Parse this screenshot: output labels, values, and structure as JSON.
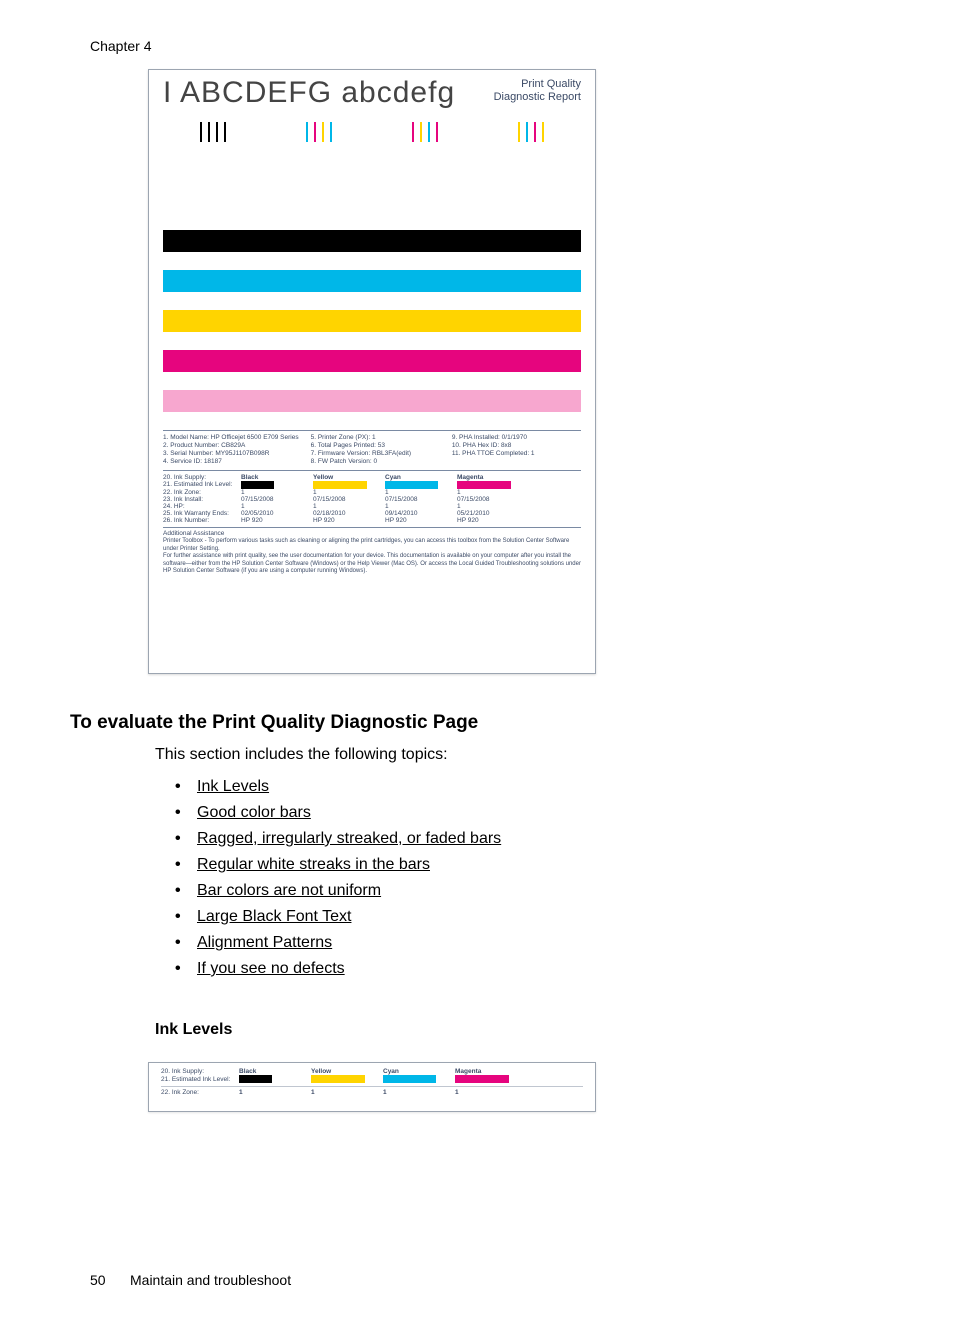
{
  "chapter_label": "Chapter 4",
  "diag": {
    "big_text": "I ABCDEFG abcdefg",
    "subtitle_line1": "Print Quality",
    "subtitle_line2": "Diagnostic Report",
    "colors": {
      "black": "#000000",
      "cyan": "#00b7e8",
      "magenta": "#e6057e",
      "yellow": "#ffd400",
      "ltpink": "#f7a7cf",
      "headtext": "#3b4a66"
    },
    "nozzle_strip_color_indices": [
      0,
      0,
      0,
      2,
      2,
      2,
      1,
      1,
      1,
      3,
      3,
      3
    ],
    "solid_bar_order": [
      "black",
      "cyan",
      "yellow",
      "magenta",
      "ltpink"
    ],
    "info_left": [
      "1. Model Name: HP Officejet 6500 E709 Series",
      "2. Product Number: CB829A",
      "3. Serial Number: MY95J1107B098R",
      "4. Service ID: 18187"
    ],
    "info_mid": [
      "5. Printer Zone (PX): 1",
      "6. Total Pages Printed: 53",
      "7. Firmware Version: RBL3FA(edit)",
      "8. FW Patch Version: 0"
    ],
    "info_right": [
      "9. PHA Installed: 0/1/1970",
      "10. PHA Hex ID: 8x8",
      "11. PHA TTOE Completed: 1"
    ],
    "ink_supply_label": "20. Ink Supply:",
    "est_level_label": "21. Estimated Ink Level:",
    "ink_cols": [
      "Black",
      "Yellow",
      "Cyan",
      "Magenta"
    ],
    "ink_bar_colors": [
      "#000000",
      "#ffd400",
      "#00b7e8",
      "#e6057e"
    ],
    "ink_bar_widths_pct": [
      55,
      90,
      88,
      90
    ],
    "zone_label": "22. Ink Zone:",
    "zone_vals": [
      "1",
      "1",
      "1",
      "1"
    ],
    "detail_rows": [
      {
        "lbl": "23. Ink Install:",
        "vals": [
          "07/15/2008",
          "07/15/2008",
          "07/15/2008",
          "07/15/2008"
        ]
      },
      {
        "lbl": "24. HP:",
        "vals": [
          "1",
          "1",
          "1",
          "1"
        ]
      },
      {
        "lbl": "25. Ink Warranty Ends:",
        "vals": [
          "02/05/2010",
          "02/18/2010",
          "09/14/2010",
          "05/21/2010"
        ]
      },
      {
        "lbl": "26. Ink Number:",
        "vals": [
          "HP 920",
          "HP 920",
          "HP 920",
          "HP 920"
        ]
      }
    ],
    "assist_heading": "Additional Assistance",
    "assist_lines": [
      "Printer Toolbox - To perform various tasks such as cleaning or aligning the print cartridges, you can access this toolbox from the Solution Center Software under Printer Setting.",
      "For further assistance with print quality, see the user documentation for your device. This documentation is available on your computer after you install the software—either from the HP Solution Center Software (Windows) or the Help Viewer (Mac OS). Or access the Local Guided Troubleshooting solutions under HP Solution Center Software (if you are using a computer running Windows)."
    ]
  },
  "section_heading": "To evaluate the Print Quality Diagnostic Page",
  "section_intro": "This section includes the following topics:",
  "topics": [
    "Ink Levels",
    "Good color bars",
    "Ragged, irregularly streaked, or faded bars",
    "Regular white streaks in the bars",
    "Bar colors are not uniform",
    "Large Black Font Text",
    "Alignment Patterns",
    "If you see no defects"
  ],
  "sub_heading": "Ink Levels",
  "page_number": "50",
  "footer_text": "Maintain and troubleshoot"
}
